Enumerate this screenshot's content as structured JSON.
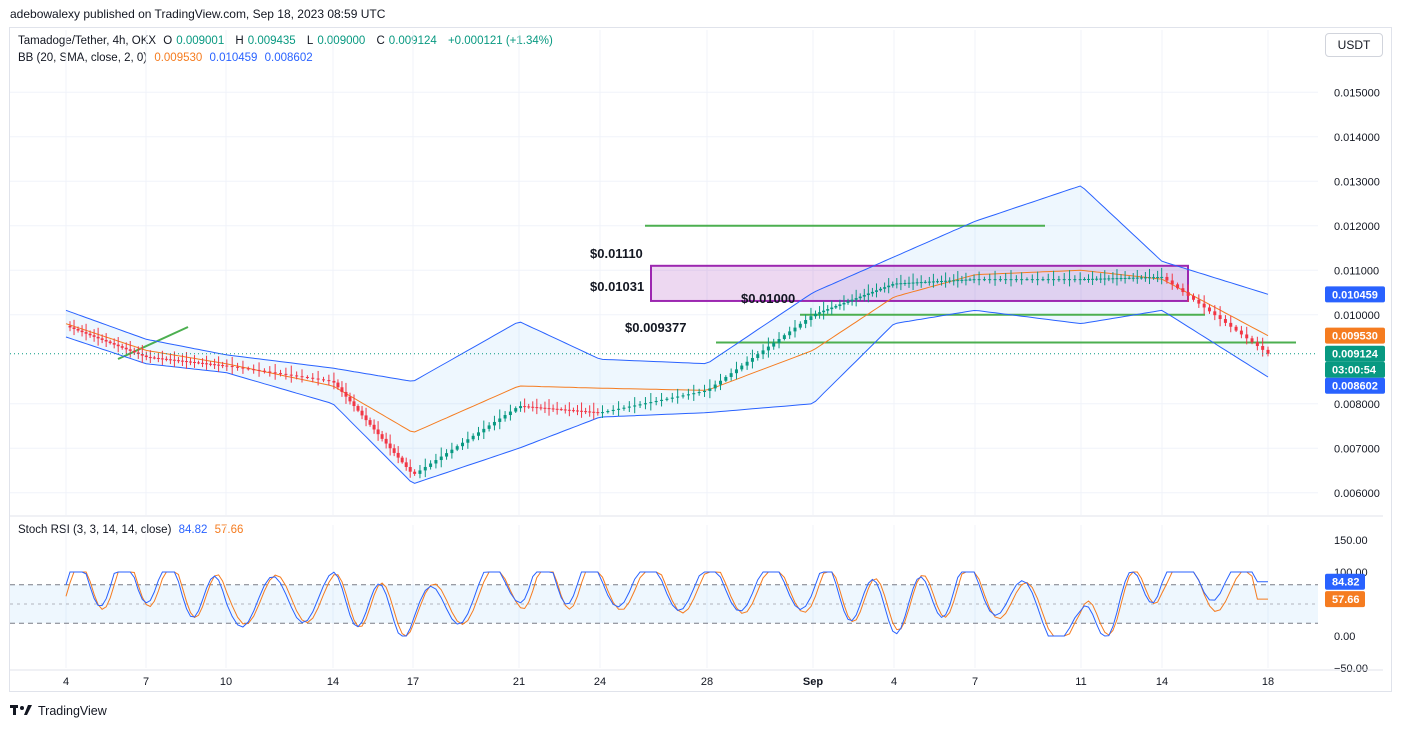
{
  "publisher": "adebowalexy published on TradingView.com, Sep 18, 2023 08:59 UTC",
  "header": {
    "symbol": "Tamadoge/Tether, 4h, OKX",
    "open_label": "O",
    "open": "0.009001",
    "high_label": "H",
    "high": "0.009435",
    "low_label": "L",
    "low": "0.009000",
    "close_label": "C",
    "close": "0.009124",
    "change": "+0.000121 (+1.34%)"
  },
  "bb_legend": {
    "label": "BB (20, SMA, close, 2, 0)",
    "mid": "0.009530",
    "upper": "0.010459",
    "lower": "0.008602"
  },
  "stoch_legend": {
    "label": "Stoch RSI (3, 3, 14, 14, close)",
    "k": "84.82",
    "d": "57.66"
  },
  "currency_button": "USDT",
  "footer": {
    "brand": "TradingView"
  },
  "price_axis": {
    "ticks": [
      "0.015000",
      "0.014000",
      "0.013000",
      "0.012000",
      "0.011000",
      "0.010000",
      "0.008000",
      "0.007000",
      "0.006000"
    ]
  },
  "price_badges": [
    {
      "text": "0.010459",
      "color": "#2962ff",
      "value": 0.010459
    },
    {
      "text": "0.009530",
      "color": "#f57c20",
      "value": 0.00953
    },
    {
      "text": "0.009124",
      "color": "#089981",
      "value": 0.009124
    },
    {
      "text": "03:00:54",
      "color": "#089981",
      "value": 0.0088
    },
    {
      "text": "0.008602",
      "color": "#2962ff",
      "value": 0.008602
    }
  ],
  "stoch_axis": {
    "ticks": [
      "150.00",
      "100.00",
      "0.00",
      "−50.00"
    ]
  },
  "stoch_badges": [
    {
      "text": "84.82",
      "color": "#2962ff"
    },
    {
      "text": "57.66",
      "color": "#f57c20"
    }
  ],
  "time_axis": [
    "4",
    "7",
    "10",
    "14",
    "17",
    "21",
    "24",
    "28",
    "Sep",
    "4",
    "7",
    "11",
    "14",
    "18"
  ],
  "annotations": [
    "$0.01110",
    "$0.01031",
    "$0.01000",
    "$0.009377"
  ],
  "colors": {
    "up": "#089981",
    "down": "#f23645",
    "bb_mid": "#f57c20",
    "bb_band": "#2962ff",
    "stoch_k": "#2962ff",
    "stoch_d": "#f57c20",
    "level": "#4caf50",
    "zone": "#9c27b0"
  },
  "chart_data": [
    {
      "type": "line",
      "title": "Tamadoge/Tether, 4h, OKX",
      "x": [
        "4",
        "7",
        "10",
        "14",
        "17",
        "21",
        "24",
        "28",
        "Sep",
        "4",
        "7",
        "11",
        "14",
        "18"
      ],
      "series": [
        {
          "name": "close",
          "values": [
            0.00975,
            0.00905,
            0.00885,
            0.0085,
            0.0064,
            0.00795,
            0.0078,
            0.0083,
            0.01,
            0.0107,
            0.0108,
            0.0108,
            0.01085,
            0.009124
          ]
        },
        {
          "name": "BB upper",
          "values": [
            0.0101,
            0.00945,
            0.0091,
            0.0088,
            0.0085,
            0.00985,
            0.009,
            0.0089,
            0.0105,
            0.0113,
            0.0121,
            0.0129,
            0.0112,
            0.01046
          ]
        },
        {
          "name": "BB mid",
          "values": [
            0.0098,
            0.0092,
            0.0089,
            0.0084,
            0.00735,
            0.0084,
            0.00835,
            0.0083,
            0.0092,
            0.0104,
            0.0109,
            0.011,
            0.0108,
            0.00953
          ]
        },
        {
          "name": "BB lower",
          "values": [
            0.0095,
            0.0089,
            0.0087,
            0.008,
            0.0062,
            0.007,
            0.0077,
            0.0078,
            0.008,
            0.0098,
            0.0101,
            0.0098,
            0.0101,
            0.0086
          ]
        }
      ],
      "ylim": [
        0.0055,
        0.0155
      ],
      "levels": [
        0.012,
        0.0111,
        0.01031,
        0.01,
        0.009377
      ],
      "zone": [
        0.01031,
        0.0111
      ]
    },
    {
      "type": "line",
      "title": "Stoch RSI (3, 3, 14, 14, close)",
      "x": [
        "4",
        "7",
        "10",
        "14",
        "17",
        "21",
        "24",
        "28",
        "Sep",
        "4",
        "7",
        "11",
        "14",
        "18"
      ],
      "series": [
        {
          "name": "84.82",
          "values": [
            80,
            90,
            50,
            62,
            30,
            90,
            85,
            75,
            80,
            40,
            85,
            5,
            100,
            84.82
          ]
        },
        {
          "name": "57.66",
          "values": [
            75,
            85,
            55,
            60,
            35,
            80,
            80,
            72,
            75,
            45,
            80,
            10,
            95,
            57.66
          ]
        }
      ],
      "ylim": [
        -50,
        150
      ],
      "bands": [
        80,
        20
      ]
    }
  ]
}
